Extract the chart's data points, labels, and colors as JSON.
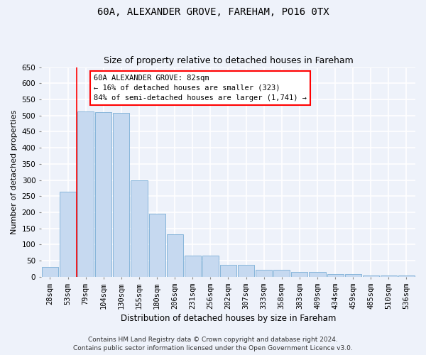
{
  "title1": "60A, ALEXANDER GROVE, FAREHAM, PO16 0TX",
  "title2": "Size of property relative to detached houses in Fareham",
  "xlabel": "Distribution of detached houses by size in Fareham",
  "ylabel": "Number of detached properties",
  "categories": [
    "28sqm",
    "53sqm",
    "79sqm",
    "104sqm",
    "130sqm",
    "155sqm",
    "180sqm",
    "206sqm",
    "231sqm",
    "256sqm",
    "282sqm",
    "307sqm",
    "333sqm",
    "358sqm",
    "383sqm",
    "409sqm",
    "434sqm",
    "459sqm",
    "485sqm",
    "510sqm",
    "536sqm"
  ],
  "values": [
    30,
    263,
    512,
    510,
    508,
    300,
    196,
    132,
    65,
    65,
    37,
    37,
    22,
    22,
    15,
    15,
    9,
    9,
    5,
    5,
    5
  ],
  "bar_color": "#c6d9f0",
  "bar_edgecolor": "#7aaed6",
  "annotation_title": "60A ALEXANDER GROVE: 82sqm",
  "annotation_line1": "← 16% of detached houses are smaller (323)",
  "annotation_line2": "84% of semi-detached houses are larger (1,741) →",
  "redline_bin_index": 2,
  "ylim": [
    0,
    650
  ],
  "yticks": [
    0,
    50,
    100,
    150,
    200,
    250,
    300,
    350,
    400,
    450,
    500,
    550,
    600,
    650
  ],
  "footer1": "Contains HM Land Registry data © Crown copyright and database right 2024.",
  "footer2": "Contains public sector information licensed under the Open Government Licence v3.0.",
  "background_color": "#eef2fa",
  "grid_color": "#ffffff",
  "title1_fontsize": 10,
  "title2_fontsize": 9,
  "xlabel_fontsize": 8.5,
  "ylabel_fontsize": 8,
  "tick_fontsize": 7.5,
  "annotation_fontsize": 7.5,
  "footer_fontsize": 6.5
}
